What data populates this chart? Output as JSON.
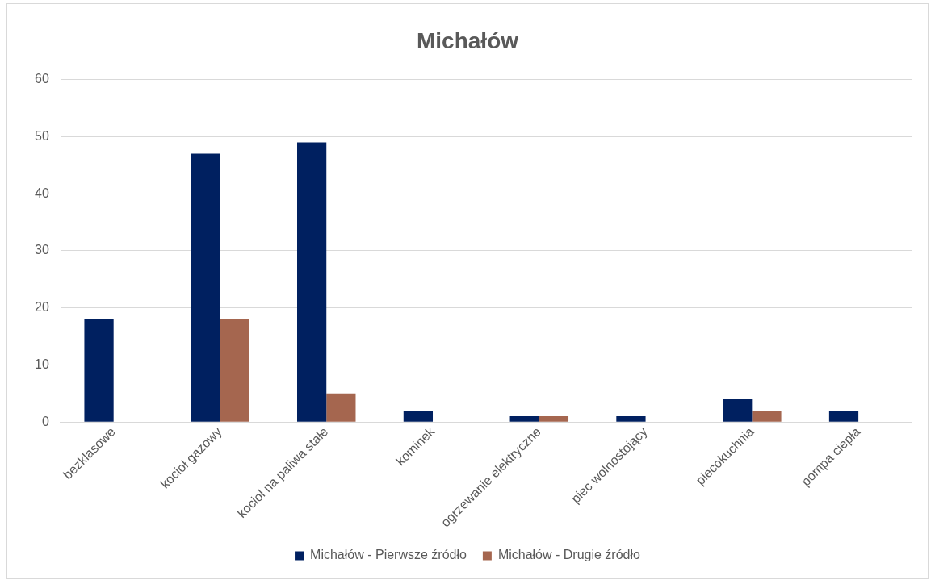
{
  "chart_data": {
    "type": "bar",
    "title": "Michałów",
    "categories": [
      "bezklasowe",
      "kocioł gazowy",
      "kocioł na paliwa stałe",
      "kominek",
      "ogrzewanie elektryczne",
      "piec wolnostojący",
      "piecokuchnia",
      "pompa ciepła"
    ],
    "series": [
      {
        "name": "Michałów - Pierwsze źródło",
        "color": "#002060",
        "values": [
          18,
          47,
          49,
          2,
          1,
          1,
          4,
          2
        ]
      },
      {
        "name": "Michałów - Drugie źródło",
        "color": "#a5664f",
        "values": [
          null,
          18,
          5,
          null,
          1,
          null,
          2,
          null
        ]
      }
    ],
    "ylim": [
      0,
      60
    ],
    "yticks": [
      0,
      10,
      20,
      30,
      40,
      50,
      60
    ],
    "grid": "y",
    "legend": "bottom"
  }
}
